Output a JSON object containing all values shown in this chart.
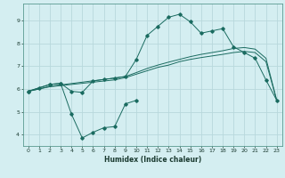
{
  "xlabel": "Humidex (Indice chaleur)",
  "bg_color": "#d4eef1",
  "grid_color": "#b8d8dc",
  "line_color": "#1a6b60",
  "xlim": [
    -0.5,
    23.5
  ],
  "ylim": [
    3.5,
    9.75
  ],
  "xticks": [
    0,
    1,
    2,
    3,
    4,
    5,
    6,
    7,
    8,
    9,
    10,
    11,
    12,
    13,
    14,
    15,
    16,
    17,
    18,
    19,
    20,
    21,
    22,
    23
  ],
  "yticks": [
    4,
    5,
    6,
    7,
    8,
    9
  ],
  "line1_x": [
    0,
    1,
    2,
    3,
    4,
    5,
    6,
    7,
    8,
    9,
    10,
    11,
    12,
    13,
    14,
    15,
    16,
    17,
    18,
    19,
    20,
    21,
    22,
    23
  ],
  "line1_y": [
    5.9,
    6.05,
    6.2,
    6.25,
    5.9,
    5.85,
    6.35,
    6.42,
    6.48,
    6.55,
    7.3,
    8.35,
    8.75,
    9.15,
    9.28,
    8.95,
    8.45,
    8.55,
    8.65,
    7.85,
    7.6,
    7.35,
    6.4,
    5.5
  ],
  "line2_x": [
    0,
    2,
    3,
    4,
    5,
    6,
    7,
    8,
    9,
    10
  ],
  "line2_y": [
    5.9,
    6.2,
    6.25,
    4.9,
    3.85,
    4.1,
    4.3,
    4.35,
    5.35,
    5.5
  ],
  "line3_x": [
    0,
    1,
    2,
    3,
    4,
    5,
    6,
    7,
    8,
    9,
    10,
    11,
    12,
    13,
    14,
    15,
    16,
    17,
    18,
    19,
    20,
    21,
    22,
    23
  ],
  "line3_y": [
    5.9,
    6.0,
    6.1,
    6.15,
    6.2,
    6.25,
    6.3,
    6.35,
    6.4,
    6.5,
    6.65,
    6.8,
    6.95,
    7.05,
    7.2,
    7.3,
    7.38,
    7.45,
    7.52,
    7.6,
    7.65,
    7.6,
    7.2,
    5.5
  ],
  "line4_x": [
    0,
    1,
    2,
    3,
    4,
    5,
    6,
    7,
    8,
    9,
    10,
    11,
    12,
    13,
    14,
    15,
    16,
    17,
    18,
    19,
    20,
    21,
    22,
    23
  ],
  "line4_y": [
    5.9,
    6.0,
    6.12,
    6.18,
    6.24,
    6.3,
    6.36,
    6.42,
    6.48,
    6.55,
    6.72,
    6.9,
    7.05,
    7.18,
    7.3,
    7.42,
    7.52,
    7.6,
    7.68,
    7.78,
    7.82,
    7.75,
    7.35,
    5.5
  ]
}
